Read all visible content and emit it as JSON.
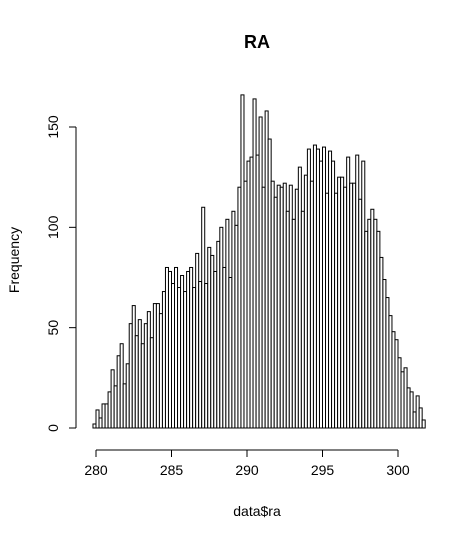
{
  "chart_data": {
    "type": "bar",
    "title": "RA",
    "xlabel": "data$ra",
    "ylabel": "Frequency",
    "xlim": [
      279.6,
      301.8
    ],
    "ylim": [
      0,
      170
    ],
    "x_ticks": [
      280,
      285,
      290,
      295,
      300
    ],
    "y_ticks": [
      0,
      50,
      100,
      150
    ],
    "grid": false,
    "bin_width": 0.2,
    "bin_start": 279.8,
    "values": [
      2,
      9,
      5,
      12,
      12,
      18,
      29,
      21,
      36,
      42,
      22,
      32,
      52,
      61,
      46,
      54,
      42,
      52,
      58,
      45,
      62,
      62,
      57,
      68,
      80,
      78,
      72,
      80,
      70,
      76,
      68,
      78,
      80,
      70,
      87,
      73,
      110,
      72,
      90,
      86,
      78,
      93,
      100,
      80,
      104,
      75,
      108,
      101,
      120,
      166,
      123,
      133,
      135,
      164,
      136,
      155,
      120,
      158,
      144,
      123,
      115,
      121,
      120,
      122,
      108,
      121,
      104,
      119,
      130,
      108,
      126,
      139,
      123,
      141,
      139,
      133,
      140,
      117,
      138,
      133,
      117,
      125,
      125,
      120,
      135,
      122,
      122,
      136,
      114,
      133,
      98,
      104,
      109,
      104,
      98,
      85,
      74,
      65,
      56,
      48,
      44,
      35,
      28,
      30,
      20,
      18,
      8,
      16,
      10,
      4
    ]
  }
}
